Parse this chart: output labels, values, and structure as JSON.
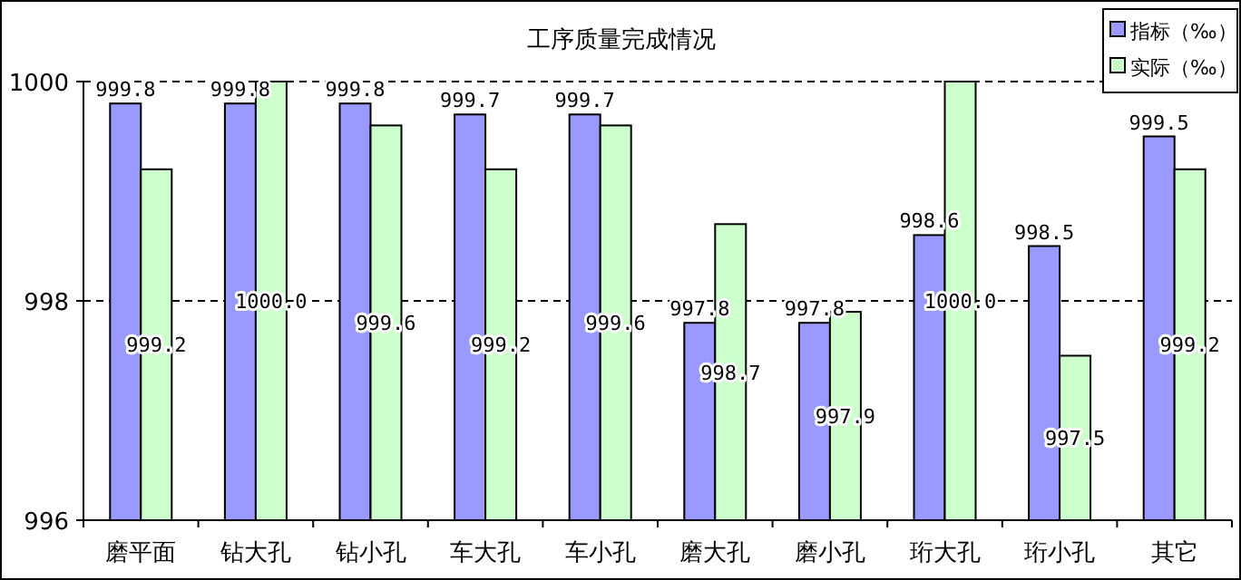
{
  "chart_data": {
    "type": "bar",
    "title": "工序质量完成情况",
    "categories": [
      "磨平面",
      "钻大孔",
      "钻小孔",
      "车大孔",
      "车小孔",
      "磨大孔",
      "磨小孔",
      "珩大孔",
      "珩小孔",
      "其它"
    ],
    "series": [
      {
        "name": "指标（‰）",
        "color": "#9999ff",
        "values": [
          999.8,
          999.8,
          999.8,
          999.7,
          999.7,
          997.8,
          997.8,
          998.6,
          998.5,
          999.5
        ],
        "value_labels": [
          "999.8",
          "999.8",
          "999.8",
          "999.7",
          "999.7",
          "997.8",
          "997.8",
          "998.6",
          "998.5",
          "999.5"
        ]
      },
      {
        "name": "实际（‰）",
        "color": "#ccffcc",
        "values": [
          999.2,
          1000.0,
          999.6,
          999.2,
          999.6,
          998.7,
          997.9,
          1000.0,
          997.5,
          999.2
        ],
        "value_labels": [
          "999.2",
          "1000.0",
          "999.6",
          "999.2",
          "999.6",
          "998.7",
          "997.9",
          "1000.0",
          "997.5",
          "999.2"
        ]
      }
    ],
    "ylim": [
      996,
      1000
    ],
    "yticks": [
      996,
      998,
      1000
    ],
    "grid": "y",
    "legend": "top right"
  }
}
